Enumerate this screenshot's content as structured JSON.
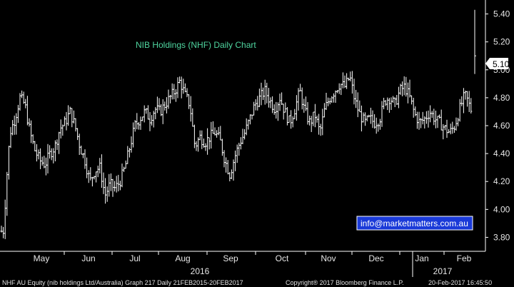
{
  "chart_data": {
    "type": "ohlc",
    "title": "NIB Holdings (NHF) Daily Chart",
    "ylim": [
      3.7,
      5.5
    ],
    "yticks": [
      "3.80",
      "4.00",
      "4.20",
      "4.40",
      "4.60",
      "4.80",
      "5.00",
      "5.20",
      "5.40"
    ],
    "x_months": [
      "May",
      "Jun",
      "Jul",
      "Aug",
      "Sep",
      "Oct",
      "Nov",
      "Dec",
      "Jan",
      "Feb"
    ],
    "years": [
      "2016",
      "2017"
    ],
    "last_price": "5.10",
    "price_path": [
      [
        0,
        3.84
      ],
      [
        5,
        3.85
      ],
      [
        9,
        4.2
      ],
      [
        14,
        4.55
      ],
      [
        21,
        4.65
      ],
      [
        28,
        4.8
      ],
      [
        35,
        4.75
      ],
      [
        42,
        4.55
      ],
      [
        49,
        4.42
      ],
      [
        56,
        4.35
      ],
      [
        63,
        4.32
      ],
      [
        70,
        4.4
      ],
      [
        77,
        4.45
      ],
      [
        84,
        4.58
      ],
      [
        91,
        4.62
      ],
      [
        98,
        4.7
      ],
      [
        105,
        4.6
      ],
      [
        112,
        4.45
      ],
      [
        119,
        4.35
      ],
      [
        126,
        4.2
      ],
      [
        133,
        4.28
      ],
      [
        140,
        4.3
      ],
      [
        147,
        4.1
      ],
      [
        154,
        4.18
      ],
      [
        161,
        4.15
      ],
      [
        168,
        4.2
      ],
      [
        175,
        4.3
      ],
      [
        182,
        4.45
      ],
      [
        189,
        4.6
      ],
      [
        196,
        4.65
      ],
      [
        203,
        4.7
      ],
      [
        210,
        4.65
      ],
      [
        217,
        4.72
      ],
      [
        224,
        4.7
      ],
      [
        231,
        4.75
      ],
      [
        238,
        4.8
      ],
      [
        245,
        4.85
      ],
      [
        252,
        4.92
      ],
      [
        259,
        4.82
      ],
      [
        266,
        4.75
      ],
      [
        273,
        4.45
      ],
      [
        280,
        4.52
      ],
      [
        287,
        4.48
      ],
      [
        294,
        4.52
      ],
      [
        301,
        4.55
      ],
      [
        308,
        4.5
      ],
      [
        315,
        4.35
      ],
      [
        322,
        4.25
      ],
      [
        329,
        4.38
      ],
      [
        336,
        4.48
      ],
      [
        343,
        4.55
      ],
      [
        350,
        4.65
      ],
      [
        357,
        4.75
      ],
      [
        364,
        4.8
      ],
      [
        371,
        4.85
      ],
      [
        378,
        4.78
      ],
      [
        385,
        4.72
      ],
      [
        392,
        4.8
      ],
      [
        399,
        4.7
      ],
      [
        406,
        4.62
      ],
      [
        413,
        4.72
      ],
      [
        420,
        4.85
      ],
      [
        427,
        4.7
      ],
      [
        434,
        4.62
      ],
      [
        441,
        4.68
      ],
      [
        448,
        4.55
      ],
      [
        455,
        4.72
      ],
      [
        462,
        4.8
      ],
      [
        469,
        4.85
      ],
      [
        476,
        4.9
      ],
      [
        483,
        4.88
      ],
      [
        490,
        4.95
      ],
      [
        497,
        4.78
      ],
      [
        504,
        4.68
      ],
      [
        511,
        4.62
      ],
      [
        518,
        4.65
      ],
      [
        525,
        4.62
      ],
      [
        532,
        4.65
      ],
      [
        539,
        4.78
      ],
      [
        546,
        4.8
      ],
      [
        553,
        4.75
      ],
      [
        560,
        4.85
      ],
      [
        567,
        4.88
      ],
      [
        574,
        4.8
      ],
      [
        581,
        4.68
      ],
      [
        588,
        4.62
      ],
      [
        595,
        4.65
      ],
      [
        602,
        4.7
      ],
      [
        609,
        4.65
      ],
      [
        616,
        4.62
      ],
      [
        623,
        4.58
      ],
      [
        630,
        4.55
      ],
      [
        637,
        4.6
      ],
      [
        644,
        4.72
      ],
      [
        651,
        4.82
      ],
      [
        655,
        4.78
      ],
      [
        659,
        4.72
      ],
      [
        662,
        4.7
      ]
    ],
    "last_bar": {
      "x": 665,
      "open": 4.98,
      "high": 5.43,
      "low": 4.97,
      "close": 5.1
    }
  },
  "annotation": {
    "email": "info@marketmatters.com.au"
  },
  "footer": {
    "left": "NHF AU Equity (nib holdings Ltd/Australia) Graph 217  Daily 21FEB2015-20FEB2017",
    "center": "Copyright® 2017 Bloomberg Finance L.P.",
    "right": "20-Feb-2017 16:45:50"
  },
  "colors": {
    "background": "#000000",
    "bars": "#ffffff",
    "title": "#4fd6a0",
    "badge": "#ffffff",
    "email_box": "#1a3ad8"
  }
}
